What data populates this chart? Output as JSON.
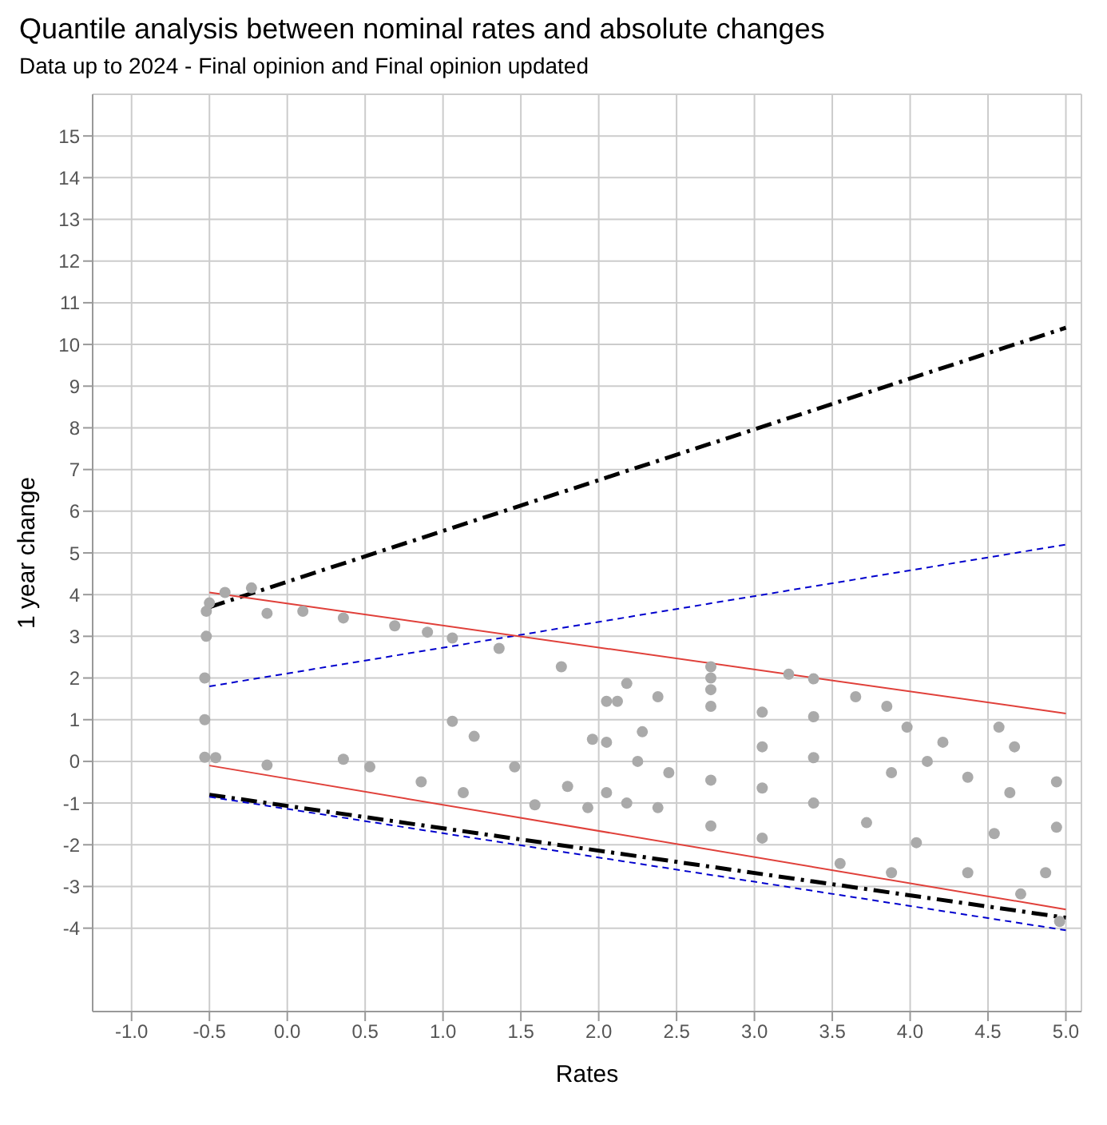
{
  "chart_data": {
    "type": "scatter",
    "title": "Quantile analysis between nominal rates and absolute changes",
    "subtitle": "Data up to 2024 - Final opinion and Final opinion updated",
    "xlabel": "Rates",
    "ylabel": "1 year change",
    "xlim": [
      -1.25,
      5.1
    ],
    "ylim": [
      -6,
      16
    ],
    "xticks": [
      {
        "value": -1,
        "label": "-1.0"
      },
      {
        "value": -0.5,
        "label": "-0.5"
      },
      {
        "value": 0,
        "label": "0.0"
      },
      {
        "value": 0.5,
        "label": "0.5"
      },
      {
        "value": 1,
        "label": "1.0"
      },
      {
        "value": 1.5,
        "label": "1.5"
      },
      {
        "value": 2,
        "label": "2.0"
      },
      {
        "value": 2.5,
        "label": "2.5"
      },
      {
        "value": 3,
        "label": "3.0"
      },
      {
        "value": 3.5,
        "label": "3.5"
      },
      {
        "value": 4,
        "label": "4.0"
      },
      {
        "value": 4.5,
        "label": "4.5"
      },
      {
        "value": 5,
        "label": "5.0"
      }
    ],
    "yticks": [
      -4,
      -3,
      -2,
      -1,
      0,
      1,
      2,
      3,
      4,
      5,
      6,
      7,
      8,
      9,
      10,
      11,
      12,
      13,
      14,
      15
    ],
    "grid": true,
    "legend": false,
    "series": [
      {
        "color": "#aaaaaa",
        "x": [
          -0.53,
          -0.53,
          -0.53,
          -0.52,
          -0.52,
          -0.5,
          -0.4,
          -0.23,
          -0.13,
          0.1,
          0.36,
          0.69,
          0.9,
          1.06,
          1.36,
          1.76,
          2.18,
          -0.46,
          -0.13,
          0.36,
          0.53,
          0.86,
          1.13,
          1.59,
          1.93,
          1.06,
          1.2,
          1.46,
          1.8,
          2.18,
          1.96,
          2.25,
          2.12,
          2.72,
          2.72,
          2.72,
          3.22,
          3.38,
          2.05,
          2.38,
          2.72,
          3.05,
          3.38,
          3.65,
          3.85,
          3.98,
          4.21,
          4.57,
          4.67,
          4.94,
          2.05,
          2.28,
          2.45,
          2.72,
          3.05,
          3.38,
          3.88,
          4.11,
          4.37,
          4.64,
          4.94,
          2.05,
          2.38,
          2.72,
          3.05,
          3.38,
          3.72,
          4.04,
          4.37,
          4.71,
          4.96,
          3.05,
          3.55,
          3.88,
          4.54,
          4.87
        ],
        "values": [
          0.1,
          1,
          2,
          3,
          3.6,
          3.8,
          4.05,
          4.16,
          3.55,
          3.6,
          3.44,
          3.25,
          3.1,
          2.96,
          2.71,
          2.27,
          1.87,
          0.09,
          -0.09,
          0.05,
          -0.13,
          -0.49,
          -0.75,
          -1.04,
          -1.11,
          0.96,
          0.6,
          -0.13,
          -0.6,
          -1.0,
          0.53,
          0,
          1.44,
          2.27,
          2,
          1.72,
          2.09,
          1.98,
          1.44,
          1.55,
          1.32,
          1.18,
          1.07,
          1.55,
          1.32,
          0.82,
          0.46,
          0.82,
          0.35,
          -0.49,
          0.46,
          0.71,
          -0.27,
          -0.45,
          0.35,
          0.09,
          -0.27,
          0,
          -0.38,
          -0.75,
          -1.58,
          -0.75,
          -1.11,
          -1.55,
          -0.64,
          -1,
          -1.47,
          -1.95,
          -2.67,
          -3.18,
          -3.84,
          -1.84,
          -2.45,
          -2.67,
          -1.73,
          -2.67
        ]
      },
      {
        "type": "line",
        "color": "#000000",
        "line_style": "dashed",
        "x": [
          -0.5,
          5
        ],
        "values": [
          3.7,
          10.4
        ]
      },
      {
        "type": "line",
        "color": "#0000cd",
        "line_style": "dotted",
        "x": [
          -0.5,
          5
        ],
        "values": [
          1.8,
          5.2
        ]
      },
      {
        "type": "line",
        "color": "#e0403a",
        "line_style": "solid",
        "x": [
          -0.5,
          5
        ],
        "values": [
          4.05,
          1.15
        ]
      },
      {
        "type": "line",
        "color": "#e0403a",
        "line_style": "solid",
        "x": [
          -0.5,
          5
        ],
        "values": [
          -0.1,
          -3.55
        ]
      },
      {
        "type": "line",
        "color": "#000000",
        "line_style": "dashed",
        "x": [
          -0.5,
          5
        ],
        "values": [
          -0.8,
          -3.75
        ]
      },
      {
        "type": "line",
        "color": "#0000cd",
        "line_style": "dotted",
        "x": [
          -0.5,
          5
        ],
        "values": [
          -0.85,
          -4.05
        ]
      }
    ]
  }
}
